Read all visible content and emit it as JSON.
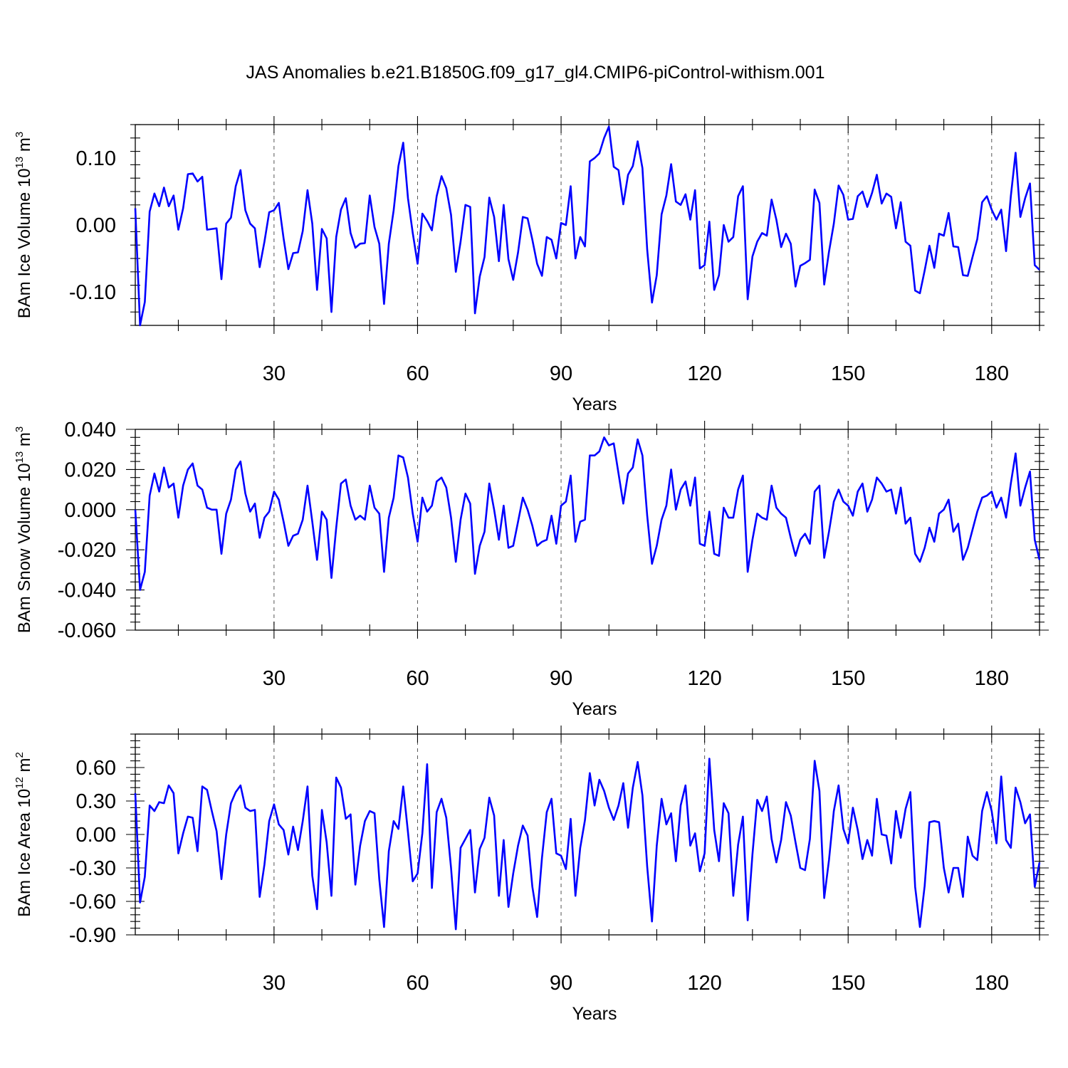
{
  "figure_title": "JAS Anomalies b.e21.B1850G.f09_g17_gl4.CMIP6-piControl-withism.001",
  "chart_data": [
    {
      "type": "line",
      "title": "JAS Anomalies b.e21.B1850G.f09_g17_gl4.CMIP6-piControl-withism.001",
      "xlabel": "Years",
      "ylabel_main": "BAm Ice Volume 10",
      "ylabel_exp": "13",
      "ylabel_unit": " m",
      "ylabel_unit_exp": "3",
      "xlim": [
        1,
        190
      ],
      "ylim": [
        -0.15,
        0.15
      ],
      "xticks": [
        30,
        60,
        90,
        120,
        150,
        180
      ],
      "xtick_labels": [
        "30",
        "60",
        "90",
        "120",
        "150",
        "180"
      ],
      "yticks": [
        -0.1,
        0.0,
        0.1
      ],
      "ytick_labels": [
        "-0.10",
        "0.00",
        "0.10"
      ],
      "series": [
        {
          "name": "BAm Ice Volume",
          "color": "#0000ff",
          "x_start": 1,
          "values": [
            0.025,
            -0.15,
            -0.115,
            0.02,
            0.047,
            0.028,
            0.056,
            0.028,
            0.044,
            -0.007,
            0.025,
            0.076,
            0.077,
            0.065,
            0.072,
            -0.007,
            -0.006,
            -0.005,
            -0.081,
            0.002,
            0.011,
            0.058,
            0.082,
            0.022,
            0.002,
            -0.005,
            -0.063,
            -0.025,
            0.019,
            0.022,
            0.033,
            -0.02,
            -0.066,
            -0.042,
            -0.041,
            -0.009,
            0.052,
            0.002,
            -0.097,
            -0.006,
            -0.02,
            -0.13,
            -0.018,
            0.023,
            0.04,
            -0.012,
            -0.034,
            -0.028,
            -0.027,
            0.044,
            -0.003,
            -0.028,
            -0.118,
            -0.028,
            0.022,
            0.088,
            0.123,
            0.04,
            -0.012,
            -0.058,
            0.017,
            0.006,
            -0.008,
            0.043,
            0.073,
            0.055,
            0.015,
            -0.07,
            -0.025,
            0.03,
            0.027,
            -0.132,
            -0.077,
            -0.048,
            0.041,
            0.012,
            -0.054,
            0.03,
            -0.051,
            -0.082,
            -0.041,
            0.012,
            0.01,
            -0.022,
            -0.058,
            -0.076,
            -0.018,
            -0.022,
            -0.05,
            0.003,
            0.0,
            0.058,
            -0.05,
            -0.018,
            -0.032,
            0.095,
            0.1,
            0.107,
            0.13,
            0.147,
            0.087,
            0.082,
            0.031,
            0.075,
            0.088,
            0.125,
            0.085,
            -0.037,
            -0.116,
            -0.075,
            0.016,
            0.044,
            0.091,
            0.035,
            0.03,
            0.046,
            0.008,
            0.052,
            -0.065,
            -0.06,
            0.005,
            -0.097,
            -0.075,
            0.0,
            -0.025,
            -0.018,
            0.043,
            0.058,
            -0.111,
            -0.047,
            -0.025,
            -0.012,
            -0.016,
            0.038,
            0.008,
            -0.033,
            -0.013,
            -0.028,
            -0.092,
            -0.061,
            -0.057,
            -0.052,
            0.053,
            0.033,
            -0.089,
            -0.04,
            0.002,
            0.059,
            0.045,
            0.008,
            0.009,
            0.043,
            0.05,
            0.027,
            0.048,
            0.075,
            0.032,
            0.047,
            0.042,
            -0.005,
            0.034,
            -0.025,
            -0.031,
            -0.098,
            -0.102,
            -0.068,
            -0.031,
            -0.064,
            -0.013,
            -0.016,
            0.018,
            -0.032,
            -0.033,
            -0.075,
            -0.076,
            -0.048,
            -0.021,
            0.034,
            0.043,
            0.023,
            0.008,
            0.023,
            -0.039,
            0.043,
            0.108,
            0.012,
            0.04,
            0.062,
            -0.06,
            -0.067
          ]
        }
      ]
    },
    {
      "type": "line",
      "xlabel": "Years",
      "ylabel_main": "BAm Snow Volume 10",
      "ylabel_exp": "13",
      "ylabel_unit": " m",
      "ylabel_unit_exp": "3",
      "xlim": [
        1,
        190
      ],
      "ylim": [
        -0.06,
        0.04
      ],
      "xticks": [
        30,
        60,
        90,
        120,
        150,
        180
      ],
      "xtick_labels": [
        "30",
        "60",
        "90",
        "120",
        "150",
        "180"
      ],
      "yticks": [
        -0.06,
        -0.04,
        -0.02,
        0.0,
        0.02,
        0.04
      ],
      "ytick_labels": [
        "-0.060",
        "-0.040",
        "-0.020",
        "0.000",
        "0.020",
        "0.040"
      ],
      "series": [
        {
          "name": "BAm Snow Volume",
          "color": "#0000ff",
          "x_start": 1,
          "values": [
            0.0,
            -0.04,
            -0.031,
            0.007,
            0.018,
            0.009,
            0.021,
            0.011,
            0.013,
            -0.004,
            0.012,
            0.02,
            0.023,
            0.012,
            0.01,
            0.001,
            0.0,
            0.0,
            -0.022,
            -0.002,
            0.005,
            0.02,
            0.024,
            0.008,
            -0.001,
            0.003,
            -0.014,
            -0.004,
            -0.001,
            0.009,
            0.005,
            -0.006,
            -0.018,
            -0.013,
            -0.012,
            -0.005,
            0.012,
            -0.006,
            -0.025,
            -0.001,
            -0.005,
            -0.034,
            -0.009,
            0.013,
            0.015,
            0.002,
            -0.005,
            -0.003,
            -0.005,
            0.012,
            0.001,
            -0.002,
            -0.031,
            -0.004,
            0.006,
            0.027,
            0.026,
            0.016,
            -0.002,
            -0.016,
            0.006,
            -0.001,
            0.002,
            0.014,
            0.016,
            0.011,
            -0.004,
            -0.026,
            -0.005,
            0.008,
            0.003,
            -0.032,
            -0.018,
            -0.011,
            0.013,
            0.0,
            -0.015,
            0.002,
            -0.019,
            -0.018,
            -0.006,
            0.006,
            0.0,
            -0.008,
            -0.018,
            -0.016,
            -0.015,
            -0.003,
            -0.017,
            0.002,
            0.004,
            0.017,
            -0.016,
            -0.006,
            -0.005,
            0.027,
            0.027,
            0.029,
            0.036,
            0.032,
            0.033,
            0.018,
            0.003,
            0.018,
            0.021,
            0.035,
            0.027,
            -0.003,
            -0.027,
            -0.018,
            -0.005,
            0.002,
            0.02,
            0.0,
            0.01,
            0.014,
            0.002,
            0.016,
            -0.017,
            -0.018,
            -0.001,
            -0.022,
            -0.023,
            0.001,
            -0.004,
            -0.004,
            0.01,
            0.017,
            -0.031,
            -0.015,
            -0.002,
            -0.004,
            -0.005,
            0.012,
            0.001,
            -0.002,
            -0.004,
            -0.014,
            -0.023,
            -0.015,
            -0.012,
            -0.017,
            0.009,
            0.012,
            -0.024,
            -0.011,
            0.004,
            0.01,
            0.004,
            0.002,
            -0.003,
            0.009,
            0.013,
            -0.001,
            0.005,
            0.016,
            0.013,
            0.009,
            0.01,
            -0.002,
            0.011,
            -0.007,
            -0.004,
            -0.022,
            -0.026,
            -0.019,
            -0.009,
            -0.016,
            -0.002,
            0.0,
            0.005,
            -0.011,
            -0.007,
            -0.025,
            -0.019,
            -0.01,
            -0.001,
            0.006,
            0.007,
            0.009,
            0.001,
            0.006,
            -0.004,
            0.013,
            0.028,
            0.002,
            0.011,
            0.019,
            -0.015,
            -0.025
          ]
        }
      ]
    },
    {
      "type": "line",
      "xlabel": "Years",
      "ylabel_main": "BAm Ice Area 10",
      "ylabel_exp": "12",
      "ylabel_unit": " m",
      "ylabel_unit_exp": "2",
      "xlim": [
        1,
        190
      ],
      "ylim": [
        -0.9,
        0.9
      ],
      "xticks": [
        30,
        60,
        90,
        120,
        150,
        180
      ],
      "xtick_labels": [
        "30",
        "60",
        "90",
        "120",
        "150",
        "180"
      ],
      "yticks": [
        -0.9,
        -0.6,
        -0.3,
        0.0,
        0.3,
        0.6
      ],
      "ytick_labels": [
        "-0.90",
        "-0.60",
        "-0.30",
        "0.00",
        "0.30",
        "0.60"
      ],
      "series": [
        {
          "name": "BAm Ice Area",
          "color": "#0000ff",
          "x_start": 1,
          "values": [
            0.37,
            -0.61,
            -0.38,
            0.26,
            0.21,
            0.29,
            0.28,
            0.44,
            0.37,
            -0.17,
            0.01,
            0.16,
            0.15,
            -0.15,
            0.43,
            0.4,
            0.21,
            0.03,
            -0.4,
            0.0,
            0.28,
            0.38,
            0.44,
            0.24,
            0.21,
            0.22,
            -0.56,
            -0.27,
            0.12,
            0.27,
            0.09,
            0.04,
            -0.18,
            0.07,
            -0.14,
            0.12,
            0.43,
            -0.37,
            -0.67,
            0.22,
            -0.07,
            -0.55,
            0.51,
            0.42,
            0.14,
            0.18,
            -0.45,
            -0.1,
            0.12,
            0.21,
            0.19,
            -0.4,
            -0.83,
            -0.15,
            0.12,
            0.05,
            0.43,
            0.02,
            -0.42,
            -0.35,
            0.01,
            0.63,
            -0.48,
            0.2,
            0.32,
            0.15,
            -0.3,
            -0.85,
            -0.12,
            -0.04,
            0.04,
            -0.52,
            -0.13,
            -0.03,
            0.33,
            0.17,
            -0.55,
            -0.05,
            -0.65,
            -0.35,
            -0.1,
            0.08,
            -0.01,
            -0.47,
            -0.74,
            -0.21,
            0.2,
            0.32,
            -0.17,
            -0.19,
            -0.31,
            0.14,
            -0.55,
            -0.12,
            0.13,
            0.55,
            0.26,
            0.49,
            0.39,
            0.24,
            0.13,
            0.26,
            0.46,
            0.06,
            0.42,
            0.65,
            0.35,
            -0.29,
            -0.78,
            -0.1,
            0.32,
            0.09,
            0.19,
            -0.24,
            0.26,
            0.44,
            -0.1,
            0.01,
            -0.33,
            -0.17,
            0.68,
            0.04,
            -0.24,
            0.28,
            0.19,
            -0.55,
            -0.09,
            0.16,
            -0.77,
            -0.18,
            0.31,
            0.21,
            0.34,
            -0.04,
            -0.25,
            -0.05,
            0.29,
            0.17,
            -0.07,
            -0.3,
            -0.32,
            -0.04,
            0.66,
            0.39,
            -0.57,
            -0.23,
            0.21,
            0.44,
            0.05,
            -0.08,
            0.24,
            0.04,
            -0.22,
            -0.05,
            -0.19,
            0.32,
            0.0,
            -0.01,
            -0.26,
            0.21,
            -0.03,
            0.23,
            0.38,
            -0.47,
            -0.83,
            -0.46,
            0.11,
            0.12,
            0.11,
            -0.3,
            -0.52,
            -0.3,
            -0.3,
            -0.56,
            -0.02,
            -0.19,
            -0.23,
            0.21,
            0.38,
            0.21,
            -0.08,
            0.52,
            -0.05,
            -0.12,
            0.42,
            0.29,
            0.1,
            0.18,
            -0.47,
            -0.25
          ]
        }
      ]
    }
  ]
}
